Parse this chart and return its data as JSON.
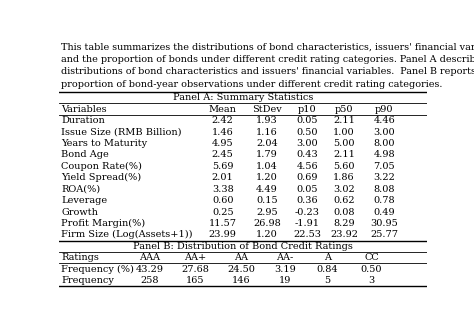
{
  "caption_lines": [
    "This table summarizes the distributions of bond characteristics, issuers' financial variables,",
    "and the proportion of bonds under different credit rating categories. Panel A describes the",
    "distributions of bond characteristics and issuers' financial variables.  Panel B reports the",
    "proportion of bond-year observations under different credit rating categories."
  ],
  "panel_a_title": "Panel A: Summary Statistics",
  "panel_a_header": [
    "Variables",
    "Mean",
    "StDev",
    "p10",
    "p50",
    "p90"
  ],
  "panel_a_rows": [
    [
      "Duration",
      "2.42",
      "1.93",
      "0.05",
      "2.11",
      "4.46"
    ],
    [
      "Issue Size (RMB Billion)",
      "1.46",
      "1.16",
      "0.50",
      "1.00",
      "3.00"
    ],
    [
      "Years to Maturity",
      "4.95",
      "2.04",
      "3.00",
      "5.00",
      "8.00"
    ],
    [
      "Bond Age",
      "2.45",
      "1.79",
      "0.43",
      "2.11",
      "4.98"
    ],
    [
      "Coupon Rate(%)",
      "5.69",
      "1.04",
      "4.56",
      "5.60",
      "7.05"
    ],
    [
      "Yield Spread(%)",
      "2.01",
      "1.20",
      "0.69",
      "1.86",
      "3.22"
    ],
    [
      "ROA(%)",
      "3.38",
      "4.49",
      "0.05",
      "3.02",
      "8.08"
    ],
    [
      "Leverage",
      "0.60",
      "0.15",
      "0.36",
      "0.62",
      "0.78"
    ],
    [
      "Growth",
      "0.25",
      "2.95",
      "-0.23",
      "0.08",
      "0.49"
    ],
    [
      "Profit Margin(%)",
      "11.57",
      "26.98",
      "-1.91",
      "8.29",
      "30.95"
    ],
    [
      "Firm Size (Log(Assets+1))",
      "23.99",
      "1.20",
      "22.53",
      "23.92",
      "25.77"
    ]
  ],
  "panel_b_title": "Panel B: Distribution of Bond Credit Ratings",
  "panel_b_header": [
    "Ratings",
    "AAA",
    "AA+",
    "AA",
    "AA-",
    "A",
    "CC"
  ],
  "panel_b_rows": [
    [
      "Frequency (%)",
      "43.29",
      "27.68",
      "24.50",
      "3.19",
      "0.84",
      "0.50"
    ],
    [
      "Frequency",
      "258",
      "165",
      "146",
      "19",
      "5",
      "3"
    ]
  ],
  "background_color": "#ffffff",
  "text_color": "#000000",
  "font_size": 7.0,
  "caption_font_size": 6.9
}
